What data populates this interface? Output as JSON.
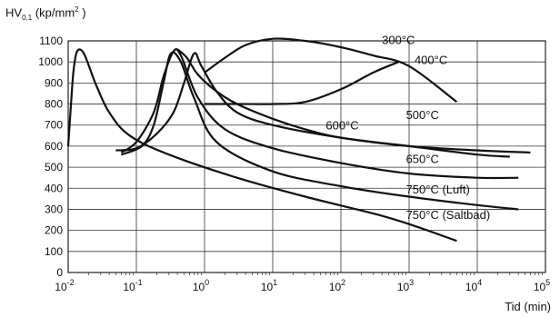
{
  "chart_data": {
    "type": "line",
    "title": "",
    "ylabel": {
      "main": "HV",
      "sub": "0,1",
      "unit_prefix": "(kp/mm",
      "unit_sup": "2",
      "unit_suffix": " )"
    },
    "xlabel": "Tid (min)",
    "x_scale": "log",
    "xlim": [
      0.01,
      100000
    ],
    "ylim": [
      0,
      1100
    ],
    "y_ticks": [
      0,
      100,
      200,
      300,
      400,
      500,
      600,
      700,
      800,
      900,
      1000,
      1100
    ],
    "x_ticks": [
      {
        "value": 0.01,
        "base": "10",
        "exp": "-2"
      },
      {
        "value": 0.1,
        "base": "10",
        "exp": "-1"
      },
      {
        "value": 1,
        "base": "10",
        "exp": "0"
      },
      {
        "value": 10,
        "base": "10",
        "exp": "1"
      },
      {
        "value": 100,
        "base": "10",
        "exp": "2"
      },
      {
        "value": 1000,
        "base": "10",
        "exp": "3"
      },
      {
        "value": 10000,
        "base": "10",
        "exp": "4"
      },
      {
        "value": 100000,
        "base": "10",
        "exp": "5"
      }
    ],
    "grid": true,
    "series": [
      {
        "name": "300°C",
        "label_at": [
          400,
          1085
        ],
        "points": [
          [
            1.0,
            950
          ],
          [
            2,
            1020
          ],
          [
            4,
            1080
          ],
          [
            10,
            1110
          ],
          [
            30,
            1100
          ],
          [
            100,
            1070
          ],
          [
            300,
            1030
          ],
          [
            1000,
            980
          ],
          [
            5000,
            810
          ]
        ]
      },
      {
        "name": "400°C",
        "label_at": [
          1200,
          990
        ],
        "points": [
          [
            1.0,
            800
          ],
          [
            3,
            800
          ],
          [
            10,
            800
          ],
          [
            30,
            810
          ],
          [
            100,
            870
          ],
          [
            300,
            950
          ],
          [
            700,
            1000
          ]
        ]
      },
      {
        "name": "500°C",
        "label_at": [
          900,
          730
        ],
        "points": [
          [
            0.4,
            1060
          ],
          [
            0.55,
            1020
          ],
          [
            0.8,
            940
          ],
          [
            1.5,
            860
          ],
          [
            3,
            800
          ],
          [
            10,
            730
          ],
          [
            30,
            680
          ],
          [
            100,
            640
          ],
          [
            1000,
            600
          ],
          [
            10000,
            580
          ],
          [
            60000,
            570
          ]
        ]
      },
      {
        "name": "600°C",
        "label_at": [
          60,
          680
        ],
        "points": [
          [
            0.05,
            580
          ],
          [
            0.1,
            590
          ],
          [
            0.2,
            660
          ],
          [
            0.35,
            760
          ],
          [
            0.5,
            900
          ],
          [
            0.7,
            1040
          ],
          [
            0.9,
            980
          ],
          [
            1.5,
            860
          ],
          [
            3,
            760
          ],
          [
            10,
            700
          ],
          [
            100,
            640
          ],
          [
            1000,
            600
          ],
          [
            10000,
            560
          ],
          [
            30000,
            550
          ]
        ]
      },
      {
        "name": "650°C",
        "label_at": [
          900,
          520
        ],
        "points": [
          [
            0.06,
            570
          ],
          [
            0.1,
            620
          ],
          [
            0.18,
            760
          ],
          [
            0.25,
            930
          ],
          [
            0.35,
            1050
          ],
          [
            0.45,
            1030
          ],
          [
            0.8,
            830
          ],
          [
            2,
            680
          ],
          [
            10,
            590
          ],
          [
            100,
            520
          ],
          [
            1000,
            470
          ],
          [
            10000,
            450
          ],
          [
            40000,
            450
          ]
        ]
      },
      {
        "name": "750°C (Luft)",
        "label_at": [
          900,
          375
        ],
        "points": [
          [
            0.06,
            560
          ],
          [
            0.12,
            600
          ],
          [
            0.18,
            700
          ],
          [
            0.25,
            900
          ],
          [
            0.32,
            1040
          ],
          [
            0.45,
            1000
          ],
          [
            0.7,
            830
          ],
          [
            1.5,
            620
          ],
          [
            10,
            480
          ],
          [
            100,
            410
          ],
          [
            1000,
            360
          ],
          [
            10000,
            320
          ],
          [
            40000,
            300
          ]
        ]
      },
      {
        "name": "750°C (Saltbad)",
        "label_at": [
          900,
          255
        ],
        "points": [
          [
            0.01,
            600
          ],
          [
            0.011,
            800
          ],
          [
            0.012,
            960
          ],
          [
            0.0135,
            1050
          ],
          [
            0.017,
            1040
          ],
          [
            0.025,
            900
          ],
          [
            0.04,
            760
          ],
          [
            0.08,
            650
          ],
          [
            0.3,
            560
          ],
          [
            3,
            450
          ],
          [
            30,
            360
          ],
          [
            300,
            280
          ],
          [
            1000,
            230
          ],
          [
            5000,
            150
          ]
        ]
      }
    ]
  }
}
